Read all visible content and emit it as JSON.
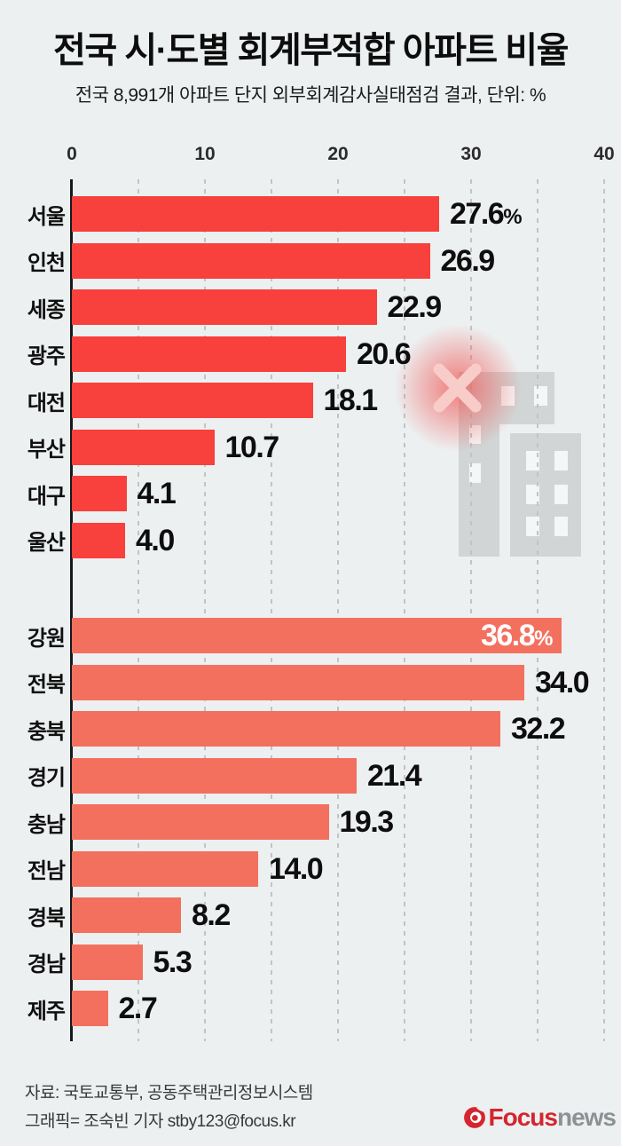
{
  "header": {
    "title_prefix": "전국 시·도별 ",
    "title_bold": "회계부적합 아파트",
    "title_suffix": " 비율",
    "subtitle": "전국 8,991개 아파트 단지 외부회계감사실태점검 결과, 단위: %"
  },
  "chart_data": {
    "type": "bar",
    "orientation": "horizontal",
    "title": "전국 시·도별 회계부적합 아파트 비율",
    "subtitle": "전국 8,991개 아파트 단지 외부회계감사실태점검 결과, 단위: %",
    "unit": "%",
    "xlim": [
      0,
      40
    ],
    "ticks": [
      0,
      10,
      20,
      30,
      40
    ],
    "gridline_values": [
      5,
      10,
      15,
      20,
      25,
      30,
      35,
      40
    ],
    "grid": "dashed-vertical",
    "groups": [
      {
        "color": "#f8403c",
        "rows": [
          {
            "label": "서울",
            "value": 27.6,
            "text": "27.6",
            "suffix": "%",
            "inside": false
          },
          {
            "label": "인천",
            "value": 26.9,
            "text": "26.9",
            "suffix": "",
            "inside": false
          },
          {
            "label": "세종",
            "value": 22.9,
            "text": "22.9",
            "suffix": "",
            "inside": false
          },
          {
            "label": "광주",
            "value": 20.6,
            "text": "20.6",
            "suffix": "",
            "inside": false
          },
          {
            "label": "대전",
            "value": 18.1,
            "text": "18.1",
            "suffix": "",
            "inside": false
          },
          {
            "label": "부산",
            "value": 10.7,
            "text": "10.7",
            "suffix": "",
            "inside": false
          },
          {
            "label": "대구",
            "value": 4.1,
            "text": "4.1",
            "suffix": "",
            "inside": false
          },
          {
            "label": "울산",
            "value": 4.0,
            "text": "4.0",
            "suffix": "",
            "inside": false
          }
        ]
      },
      {
        "color": "#f3705f",
        "rows": [
          {
            "label": "강원",
            "value": 36.8,
            "text": "36.8",
            "suffix": "%",
            "inside": true
          },
          {
            "label": "전북",
            "value": 34.0,
            "text": "34.0",
            "suffix": "",
            "inside": false
          },
          {
            "label": "충북",
            "value": 32.2,
            "text": "32.2",
            "suffix": "",
            "inside": false
          },
          {
            "label": "경기",
            "value": 21.4,
            "text": "21.4",
            "suffix": "",
            "inside": false
          },
          {
            "label": "충남",
            "value": 19.3,
            "text": "19.3",
            "suffix": "",
            "inside": false
          },
          {
            "label": "전남",
            "value": 14.0,
            "text": "14.0",
            "suffix": "",
            "inside": false
          },
          {
            "label": "경북",
            "value": 8.2,
            "text": "8.2",
            "suffix": "",
            "inside": false
          },
          {
            "label": "경남",
            "value": 5.3,
            "text": "5.3",
            "suffix": "",
            "inside": false
          },
          {
            "label": "제주",
            "value": 2.7,
            "text": "2.7",
            "suffix": "",
            "inside": false
          }
        ]
      }
    ]
  },
  "colors": {
    "background": "#edf0f1",
    "bar_group1": "#f8403c",
    "bar_group2": "#f3705f",
    "axis_line": "#17181a",
    "gridline": "#bfc4c6",
    "building_gray": "#d2d5d5",
    "x_mark_pink": "#f8cdc9",
    "x_glow_red": "#f04b48",
    "logo_red": "#d4262e",
    "logo_gray": "#8d9194"
  },
  "footer": {
    "source": "자료: 국토교통부, 공동주택관리정보시스템",
    "credit": "그래픽= 조숙빈 기자 stby123@focus.kr",
    "logo_focus": "Focus",
    "logo_news": "news"
  }
}
